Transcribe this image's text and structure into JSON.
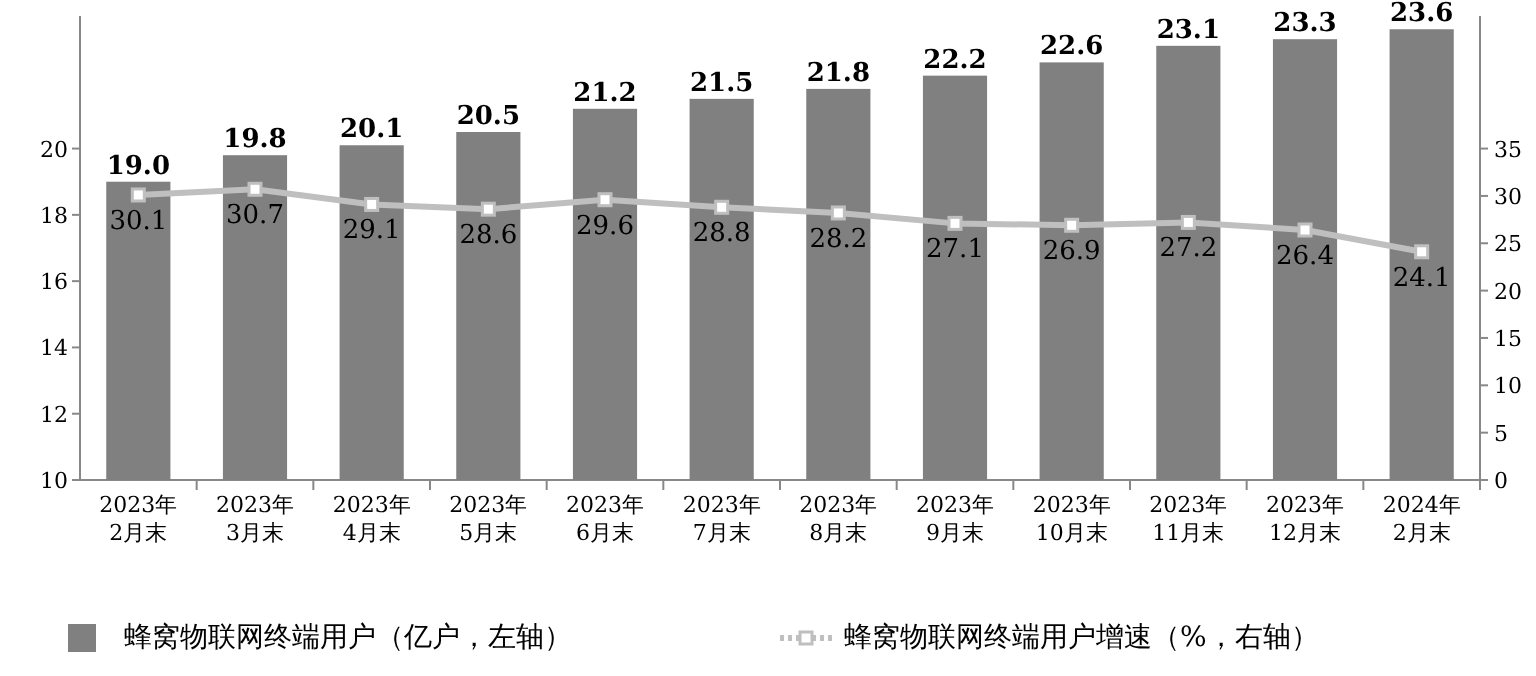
{
  "chart_data": {
    "type": "bar",
    "categories": [
      "2023年2月末",
      "2023年3月末",
      "2023年4月末",
      "2023年5月末",
      "2023年6月末",
      "2023年7月末",
      "2023年8月末",
      "2023年9月末",
      "2023年10月末",
      "2023年11月末",
      "2023年12月末",
      "2024年2月末"
    ],
    "series": [
      {
        "name": "蜂窝物联网终端用户（亿户，左轴）",
        "color": "#808080",
        "values": [
          19.0,
          19.8,
          20.1,
          20.5,
          21.2,
          21.5,
          21.8,
          22.2,
          22.6,
          23.1,
          23.3,
          23.6
        ],
        "value_labels": [
          "19.0",
          "19.8",
          "20.1",
          "20.5",
          "21.2",
          "21.5",
          "21.8",
          "22.2",
          "22.6",
          "23.1",
          "23.3",
          "23.6"
        ]
      },
      {
        "name": "蜂窝物联网终端用户增速（%，右轴）",
        "type": "line",
        "axis": "y2",
        "color": "#bfbfbf",
        "marker": "square",
        "values": [
          30.1,
          30.7,
          29.1,
          28.6,
          29.6,
          28.8,
          28.2,
          27.1,
          26.9,
          27.2,
          26.4,
          24.1
        ],
        "value_labels": [
          "30.1",
          "30.7",
          "29.1",
          "28.6",
          "29.6",
          "28.8",
          "28.2",
          "27.1",
          "26.9",
          "27.2",
          "26.4",
          "24.1"
        ]
      }
    ],
    "ylim": [
      10,
      24
    ],
    "yticks": [
      10,
      12,
      14,
      16,
      18,
      20
    ],
    "y2lim": [
      0,
      49
    ],
    "y2ticks": [
      0,
      5,
      10,
      15,
      20,
      25,
      30,
      35
    ],
    "legend": "bottom"
  }
}
